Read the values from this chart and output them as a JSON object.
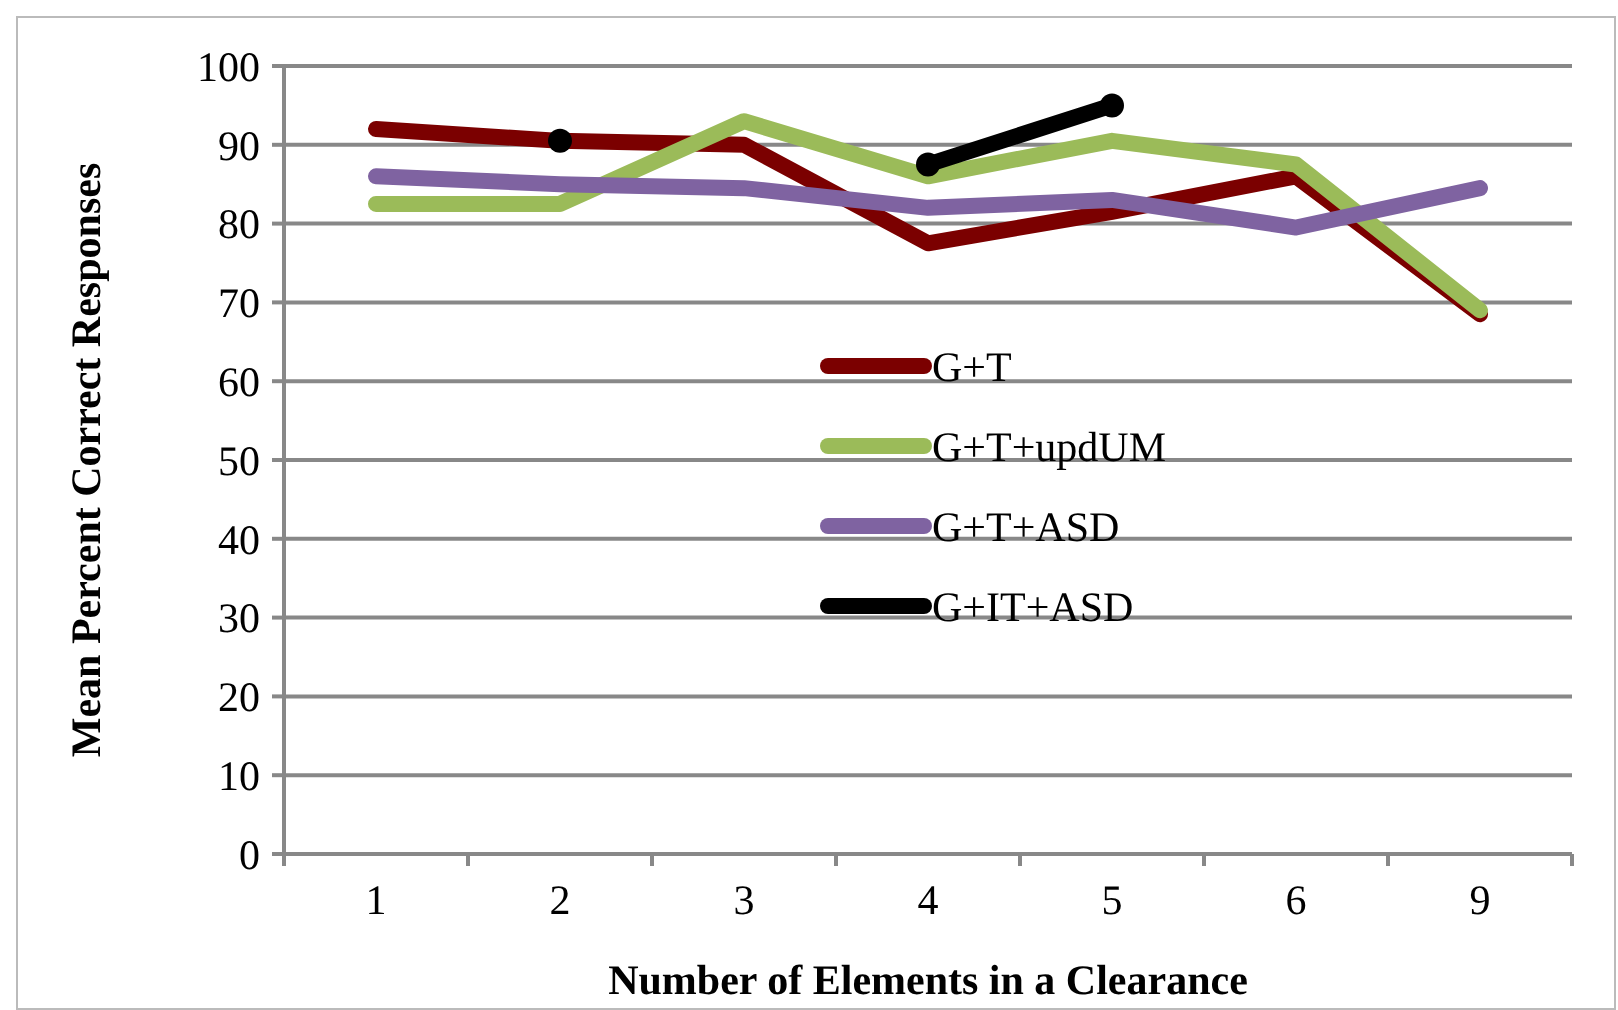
{
  "chart_data": {
    "type": "line",
    "xlabel": "Number of Elements in a Clearance",
    "ylabel": "Mean Percent Correct Responses",
    "categories": [
      "1",
      "2",
      "3",
      "4",
      "5",
      "6",
      "9"
    ],
    "series": [
      {
        "name": "G+T",
        "color": "#7b0000",
        "values": [
          92,
          90.5,
          90,
          77.5,
          81.5,
          86,
          68.5
        ]
      },
      {
        "name": "G+T+updUM",
        "color": "#9bbb59",
        "values": [
          82.5,
          82.5,
          93,
          86,
          90.5,
          87.5,
          69
        ]
      },
      {
        "name": "G+T+ASD",
        "color": "#7f63a1",
        "values": [
          86,
          85,
          84.5,
          82,
          83,
          79.5,
          84.5
        ]
      },
      {
        "name": "G+IT+ASD",
        "color": "#000000",
        "values": [
          null,
          90.5,
          null,
          87.5,
          95,
          null,
          null
        ],
        "marker": "circle"
      }
    ],
    "ylim": [
      0,
      100
    ],
    "yticks": [
      0,
      10,
      20,
      30,
      40,
      50,
      60,
      70,
      80,
      90,
      100
    ],
    "grid": "y",
    "legend": "center"
  }
}
